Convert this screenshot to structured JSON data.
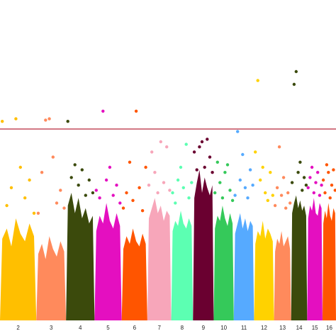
{
  "chart_data": {
    "type": "manhattan",
    "ylim": [
      0,
      10
    ],
    "threshold": 7.5,
    "threshold_color": "#b8283a",
    "series": [
      {
        "name": "2",
        "length": 242,
        "color": "#ffbf00",
        "envelope": [
          3.2,
          3.6,
          2.9,
          4.0,
          3.4,
          3.1,
          3.8,
          3.3
        ],
        "values": [
          7.8,
          4.5,
          5.2,
          7.9,
          6.0,
          4.8,
          5.5,
          4.2
        ]
      },
      {
        "name": "3",
        "length": 198,
        "color": "#ff8a5c",
        "envelope": [
          2.6,
          3.0,
          2.4,
          3.3,
          2.8,
          2.5,
          3.1,
          2.7
        ],
        "values": [
          4.2,
          5.8,
          7.85,
          7.9,
          6.4,
          4.6,
          5.1,
          4.4
        ]
      },
      {
        "name": "4",
        "length": 190,
        "color": "#3b4a0c",
        "envelope": [
          4.5,
          5.0,
          4.2,
          4.8,
          4.0,
          4.4,
          3.8,
          4.1
        ],
        "values": [
          7.8,
          5.6,
          6.1,
          5.3,
          5.9,
          4.9,
          5.5,
          5.0
        ]
      },
      {
        "name": "5",
        "length": 181,
        "color": "#e40fc0",
        "envelope": [
          3.5,
          4.1,
          3.8,
          4.6,
          3.9,
          3.6,
          4.2,
          3.7
        ],
        "values": [
          5.1,
          4.8,
          8.2,
          5.5,
          6.0,
          4.9,
          5.3,
          4.6
        ]
      },
      {
        "name": "6",
        "length": 171,
        "color": "#ff5500",
        "envelope": [
          2.8,
          3.3,
          3.0,
          3.6,
          3.1,
          2.9,
          3.4,
          3.0
        ],
        "values": [
          4.4,
          5.0,
          6.2,
          4.7,
          8.2,
          5.2,
          4.3,
          6.0
        ]
      },
      {
        "name": "7",
        "length": 159,
        "color": "#f7a6ba",
        "envelope": [
          4.0,
          4.4,
          4.8,
          4.2,
          4.5,
          3.9,
          4.3,
          4.1
        ],
        "values": [
          5.3,
          6.6,
          5.8,
          5.0,
          7.0,
          5.4,
          6.8,
          5.1
        ]
      },
      {
        "name": "8",
        "length": 145,
        "color": "#5cffb2",
        "envelope": [
          3.5,
          3.9,
          3.7,
          4.3,
          3.8,
          3.6,
          4.0,
          3.7
        ],
        "values": [
          5.0,
          4.6,
          5.5,
          6.0,
          5.2,
          6.9,
          4.8,
          5.4
        ]
      },
      {
        "name": "9",
        "length": 138,
        "color": "#6a0030",
        "envelope": [
          4.8,
          5.4,
          5.9,
          5.0,
          5.6,
          5.2,
          4.9,
          5.3
        ],
        "values": [
          6.6,
          5.9,
          6.8,
          7.0,
          6.0,
          7.1,
          6.4,
          5.8
        ]
      },
      {
        "name": "10",
        "length": 134,
        "color": "#35c95a",
        "envelope": [
          3.6,
          4.1,
          3.9,
          4.5,
          4.0,
          3.7,
          4.2,
          3.8
        ],
        "values": [
          5.0,
          6.2,
          5.4,
          4.8,
          5.8,
          6.1,
          5.1,
          4.7
        ]
      },
      {
        "name": "11",
        "length": 135,
        "color": "#56aaff",
        "envelope": [
          3.4,
          3.8,
          4.2,
          3.6,
          4.0,
          3.5,
          3.9,
          3.7
        ],
        "values": [
          4.9,
          7.4,
          5.5,
          6.5,
          5.2,
          4.8,
          5.9,
          5.3
        ]
      },
      {
        "name": "12",
        "length": 133,
        "color": "#ffd200",
        "envelope": [
          3.0,
          3.5,
          3.3,
          3.9,
          3.2,
          3.6,
          3.4,
          3.1
        ],
        "values": [
          6.6,
          9.4,
          5.5,
          6.0,
          5.0,
          4.7,
          5.8,
          4.9
        ]
      },
      {
        "name": "13",
        "length": 114,
        "color": "#ff8a5c",
        "envelope": [
          2.7,
          3.2,
          3.0,
          3.5,
          2.9,
          3.1,
          3.3,
          2.8
        ],
        "values": [
          4.5,
          5.2,
          6.8,
          4.9,
          5.6,
          4.4,
          5.0,
          4.6
        ]
      },
      {
        "name": "14",
        "length": 107,
        "color": "#3b4a0c",
        "envelope": [
          4.2,
          4.6,
          4.9,
          4.4,
          4.7,
          4.3,
          4.5,
          4.1
        ],
        "values": [
          5.4,
          9.25,
          9.75,
          5.8,
          6.2,
          5.1,
          5.6,
          5.3
        ]
      },
      {
        "name": "15",
        "length": 102,
        "color": "#e40fc0",
        "envelope": [
          4.0,
          4.5,
          4.3,
          4.8,
          4.2,
          4.1,
          4.6,
          4.4
        ],
        "values": [
          5.2,
          5.6,
          6.0,
          5.0,
          5.4,
          5.8,
          4.9,
          5.3
        ]
      },
      {
        "name": "16",
        "length": 90,
        "color": "#ff5500",
        "envelope": [
          3.8,
          4.3,
          4.0,
          4.6,
          4.1,
          3.9,
          4.4,
          4.2
        ],
        "values": [
          5.5,
          5.0,
          6.1,
          5.8,
          4.8,
          5.3,
          5.9,
          5.1
        ]
      }
    ]
  }
}
